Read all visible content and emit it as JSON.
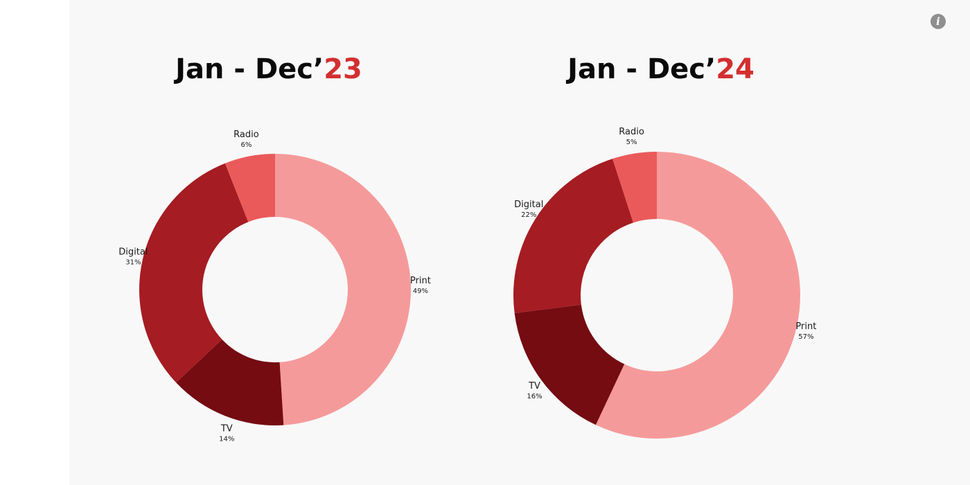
{
  "info_button": {
    "icon": "info-icon",
    "glyph": "i"
  },
  "chart_data": [
    {
      "type": "pie",
      "variant": "donut",
      "title": {
        "prefix": "Jan - Dec’",
        "year": "23"
      },
      "start": "top-clockwise",
      "slices": [
        {
          "name": "Print",
          "value": 49,
          "label": "49%",
          "color": "#f59a9a"
        },
        {
          "name": "TV",
          "value": 14,
          "label": "14%",
          "color": "#740c12"
        },
        {
          "name": "Digital",
          "value": 31,
          "label": "31%",
          "color": "#a51c22"
        },
        {
          "name": "Radio",
          "value": 6,
          "label": "6%",
          "color": "#ea5a5a"
        }
      ]
    },
    {
      "type": "pie",
      "variant": "donut",
      "title": {
        "prefix": "Jan - Dec’",
        "year": "24"
      },
      "start": "top-clockwise",
      "slices": [
        {
          "name": "Print",
          "value": 57,
          "label": "57%",
          "color": "#f59a9a"
        },
        {
          "name": "TV",
          "value": 16,
          "label": "16%",
          "color": "#740c12"
        },
        {
          "name": "Digital",
          "value": 22,
          "label": "22%",
          "color": "#a51c22"
        },
        {
          "name": "Radio",
          "value": 5,
          "label": "5%",
          "color": "#ea5a5a"
        }
      ]
    }
  ],
  "colors": {
    "accent": "#d32f2f",
    "panel_background": "#f8f8f8"
  }
}
